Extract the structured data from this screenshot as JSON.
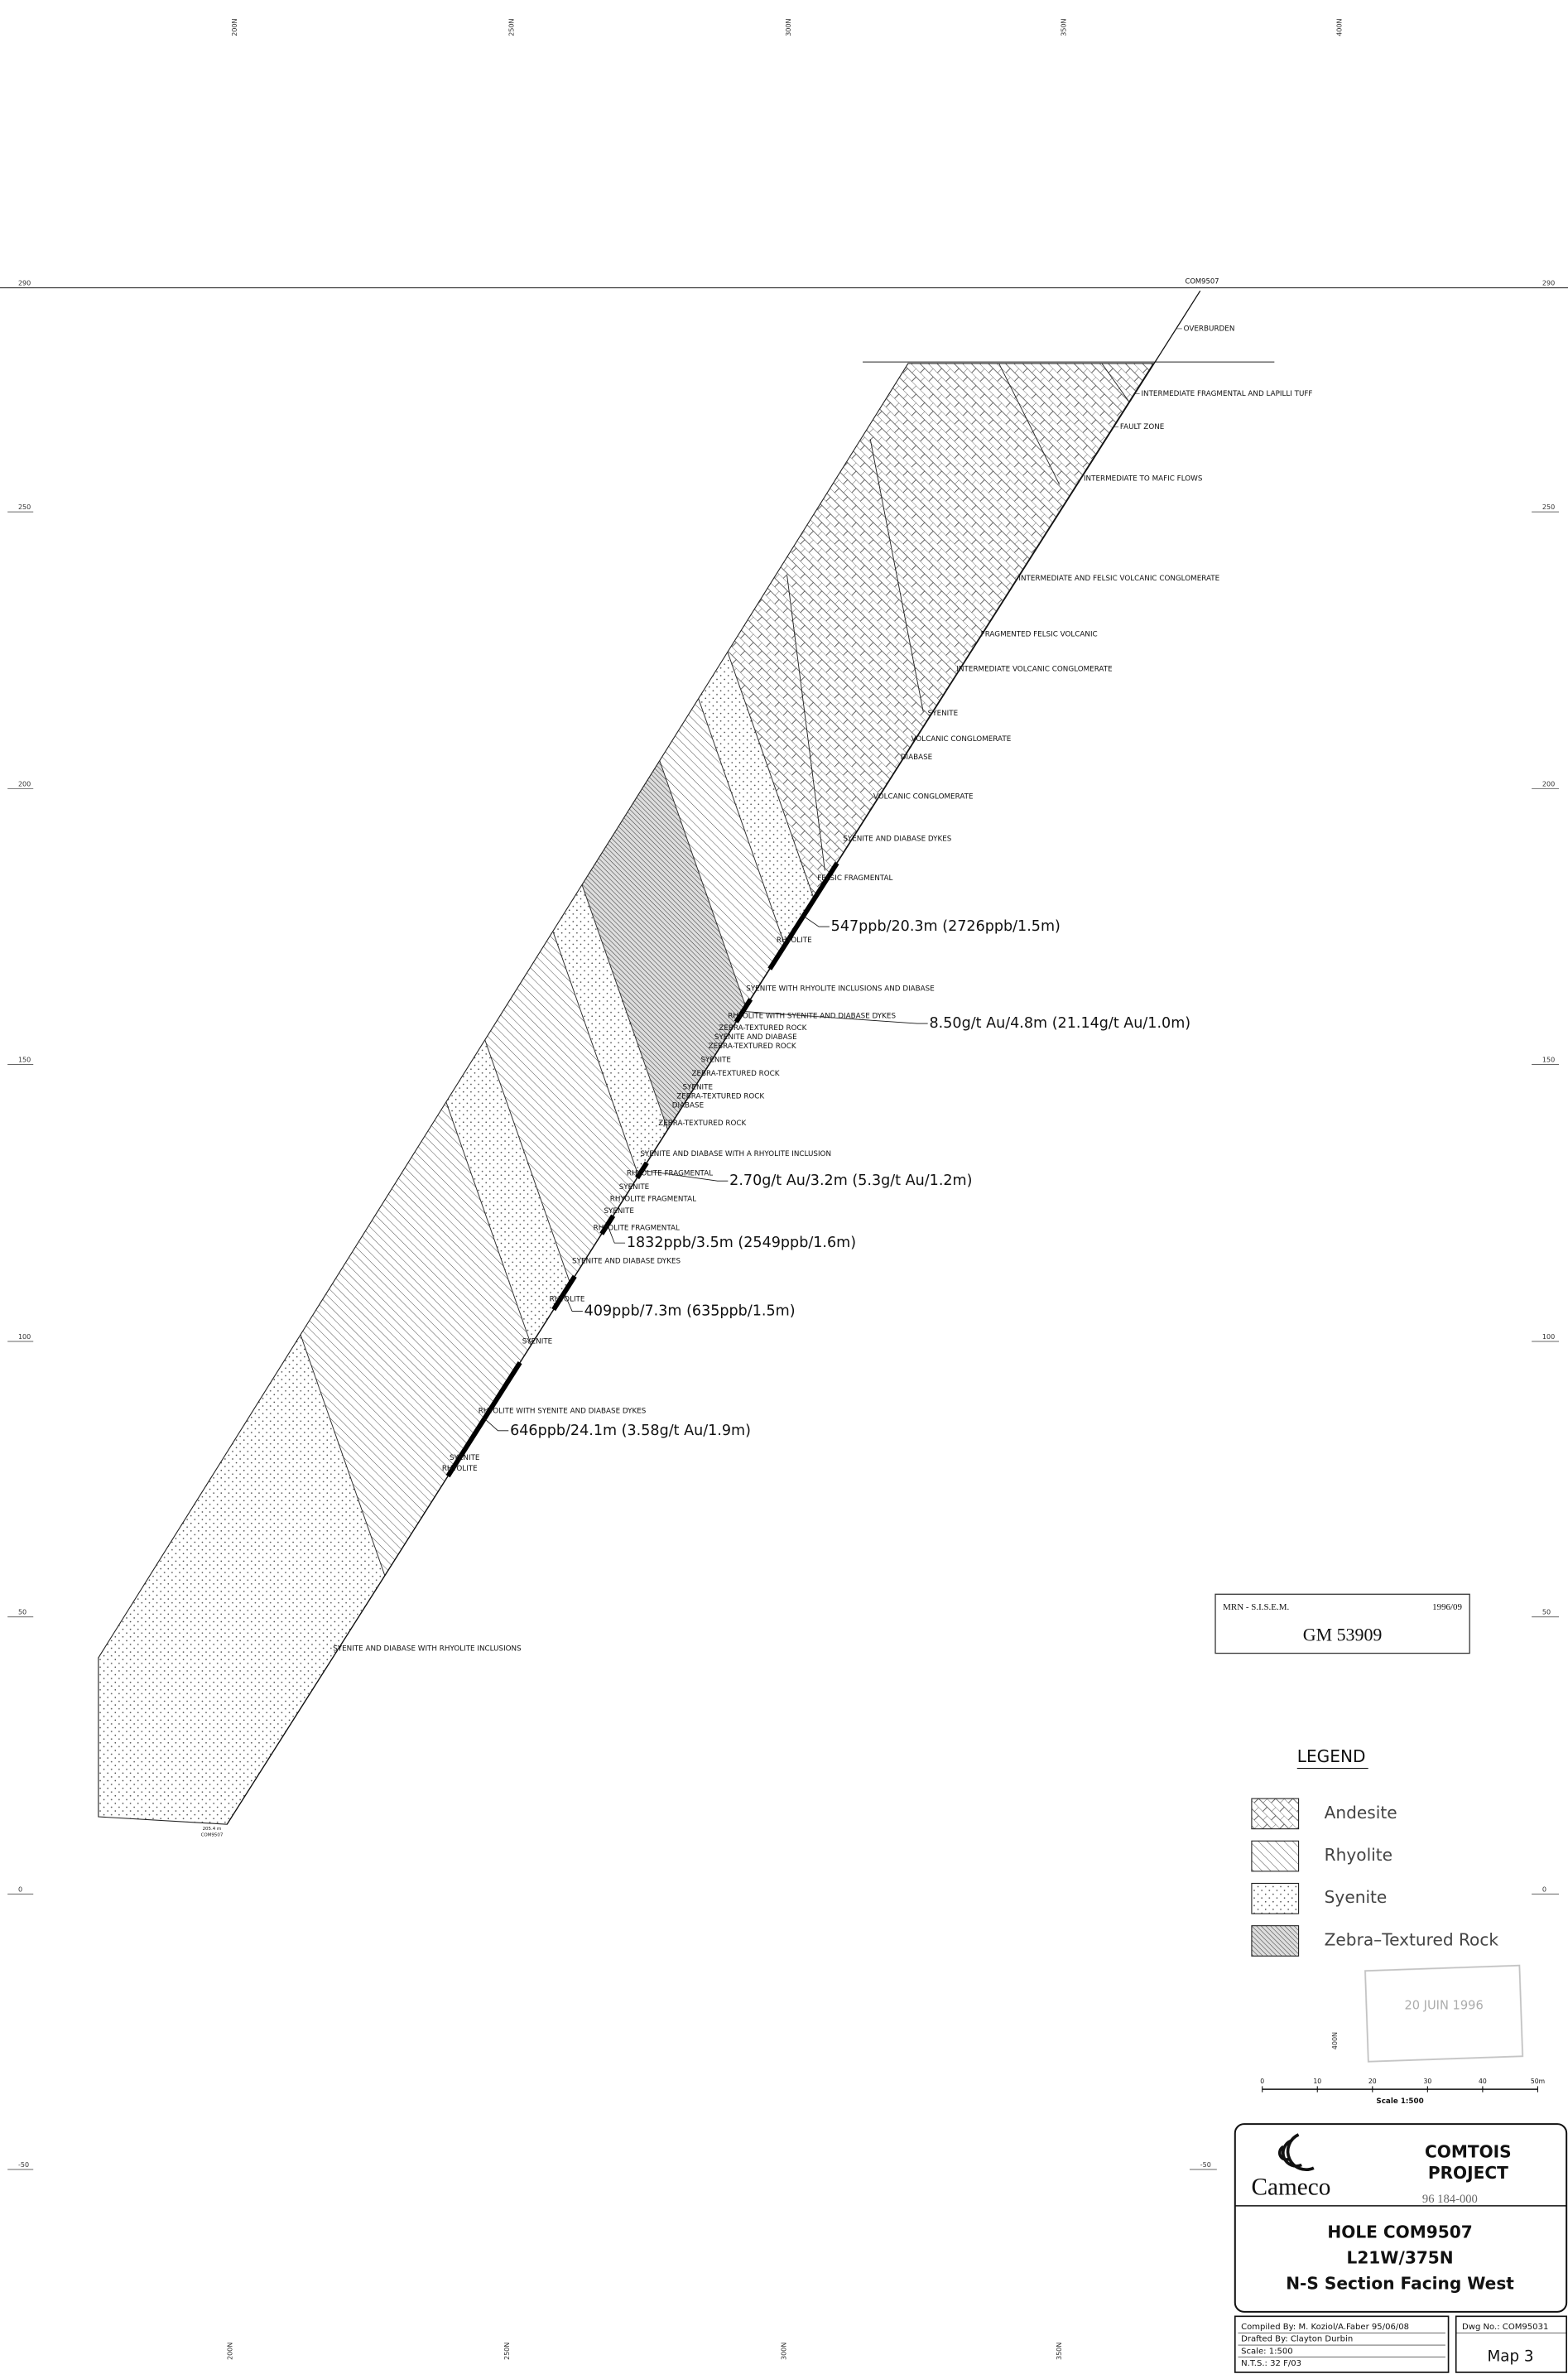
{
  "northings_top": [
    "200N",
    "250N",
    "300N",
    "350N",
    "400N"
  ],
  "northings_bottom": [
    "200N",
    "250N",
    "300N",
    "350N"
  ],
  "elevations": [
    290,
    250,
    200,
    150,
    100,
    50,
    0,
    -50
  ],
  "hole_id": "COM9507",
  "lithology_labels": [
    "OVERBURDEN",
    "INTERMEDIATE FRAGMENTAL AND LAPILLI TUFF",
    "FAULT ZONE",
    "INTERMEDIATE TO MAFIC FLOWS",
    "INTERMEDIATE AND FELSIC VOLCANIC CONGLOMERATE",
    "FRAGMENTED FELSIC VOLCANIC",
    "INTERMEDIATE VOLCANIC CONGLOMERATE",
    "SYENITE",
    "VOLCANIC CONGLOMERATE",
    "DIABASE",
    "VOLCANIC CONGLOMERATE",
    "SYENITE AND DIABASE DYKES",
    "FELSIC FRAGMENTAL",
    "RHYOLITE",
    "SYENITE WITH RHYOLITE INCLUSIONS AND DIABASE",
    "RHYOLITE WITH SYENITE AND DIABASE DYKES",
    "ZEBRA-TEXTURED ROCK",
    "SYENITE AND DIABASE",
    "ZEBRA-TEXTURED ROCK",
    "SYENITE",
    "ZEBRA-TEXTURED ROCK",
    "SYENITE",
    "ZEBRA-TEXTURED ROCK",
    "DIABASE",
    "ZEBRA-TEXTURED ROCK",
    "SYENITE AND DIABASE WITH A RHYOLITE INCLUSION",
    "RHYOLITE FRAGMENTAL",
    "SYENITE",
    "RHYOLITE FRAGMENTAL",
    "SYENITE",
    "RHYOLITE FRAGMENTAL",
    "SYENITE AND DIABASE DYKES",
    "RHYOLITE",
    "SYENITE",
    "RHYOLITE WITH SYENITE AND DIABASE DYKES",
    "SYENITE",
    "RHYOLITE",
    "SYENITE AND DIABASE WITH RHYOLITE INCLUSIONS"
  ],
  "assay_labels": [
    "547ppb/20.3m  (2726ppb/1.5m)",
    "8.50g/t Au/4.8m  (21.14g/t Au/1.0m)",
    "2.70g/t Au/3.2m  (5.3g/t Au/1.2m)",
    "1832ppb/3.5m  (2549ppb/1.6m)",
    "409ppb/7.3m  (635ppb/1.5m)",
    "646ppb/24.1m  (3.58g/t Au/1.9m)"
  ],
  "end_of_hole": [
    "205.4 m",
    "COM9507"
  ],
  "archive_stamp": {
    "agency": "MRN - S.I.S.E.M.",
    "date": "1996/09",
    "number": "GM 53909"
  },
  "legend": {
    "title": "LEGEND",
    "items": [
      "Andesite",
      "Rhyolite",
      "Syenite",
      "Zebra–Textured Rock"
    ]
  },
  "received_stamp": "20 JUIN 1996",
  "northing_note": "400N",
  "scale_bar": {
    "ticks": [
      "0",
      "10",
      "20",
      "30",
      "40",
      "50m"
    ],
    "label": "Scale    1:500"
  },
  "title_block": {
    "company": "Cameco",
    "project": [
      "COMTOIS",
      "PROJECT"
    ],
    "file_no": "96 184-000",
    "hole": "HOLE COM9507",
    "line": "L21W/375N",
    "section": "N-S Section Facing West",
    "compiled": "Compiled By: M. Koziol/A.Faber   95/06/08",
    "drafted": "Drafted By: Clayton Durbin",
    "scale": "Scale: 1:500",
    "nts": "N.T.S.: 32 F/03",
    "dwg": "Dwg No.: COM95031",
    "map": "Map 3"
  }
}
